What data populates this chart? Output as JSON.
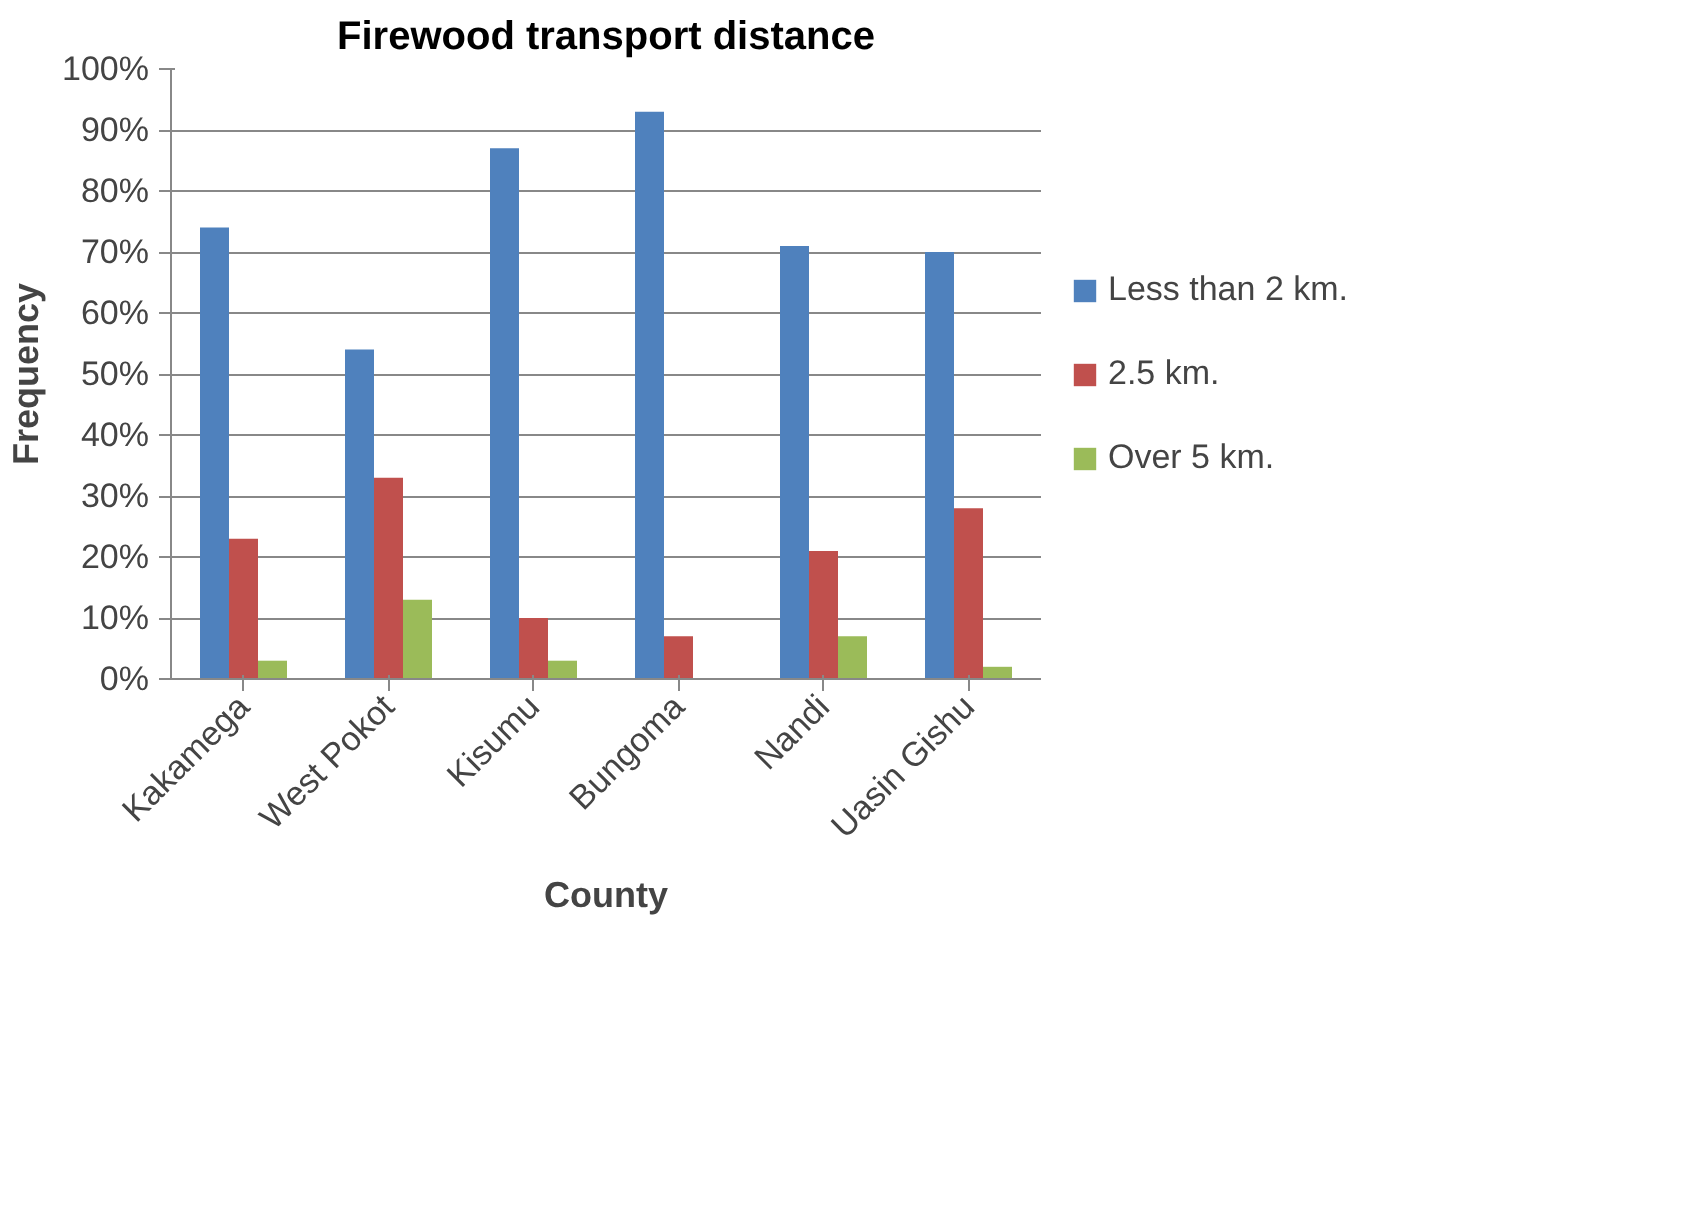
{
  "chart_data": {
    "type": "bar",
    "title": "Firewood transport distance",
    "xlabel": "County",
    "ylabel": "Frequency",
    "categories": [
      "Kakamega",
      "West Pokot",
      "Kisumu",
      "Bungoma",
      "Nandi",
      "Uasin Gishu"
    ],
    "series": [
      {
        "name": "Less than 2 km.",
        "color": "#4f81bd",
        "values": [
          74,
          54,
          87,
          93,
          71,
          70
        ]
      },
      {
        "name": "2.5 km.",
        "color": "#c0504d",
        "values": [
          23,
          33,
          10,
          7,
          21,
          28
        ]
      },
      {
        "name": "Over 5 km.",
        "color": "#9bbb59",
        "values": [
          3,
          13,
          3,
          0,
          7,
          2
        ]
      }
    ],
    "ylim": [
      0,
      100
    ],
    "yticks": [
      {
        "value": 0,
        "label": "0%"
      },
      {
        "value": 10,
        "label": "10%"
      },
      {
        "value": 20,
        "label": "20%"
      },
      {
        "value": 30,
        "label": "30%"
      },
      {
        "value": 40,
        "label": "40%"
      },
      {
        "value": 50,
        "label": "50%"
      },
      {
        "value": 60,
        "label": "60%"
      },
      {
        "value": 70,
        "label": "70%"
      },
      {
        "value": 80,
        "label": "80%"
      },
      {
        "value": 90,
        "label": "90%"
      },
      {
        "value": 100,
        "label": "100%"
      }
    ],
    "grid": "y",
    "legend": "right"
  }
}
